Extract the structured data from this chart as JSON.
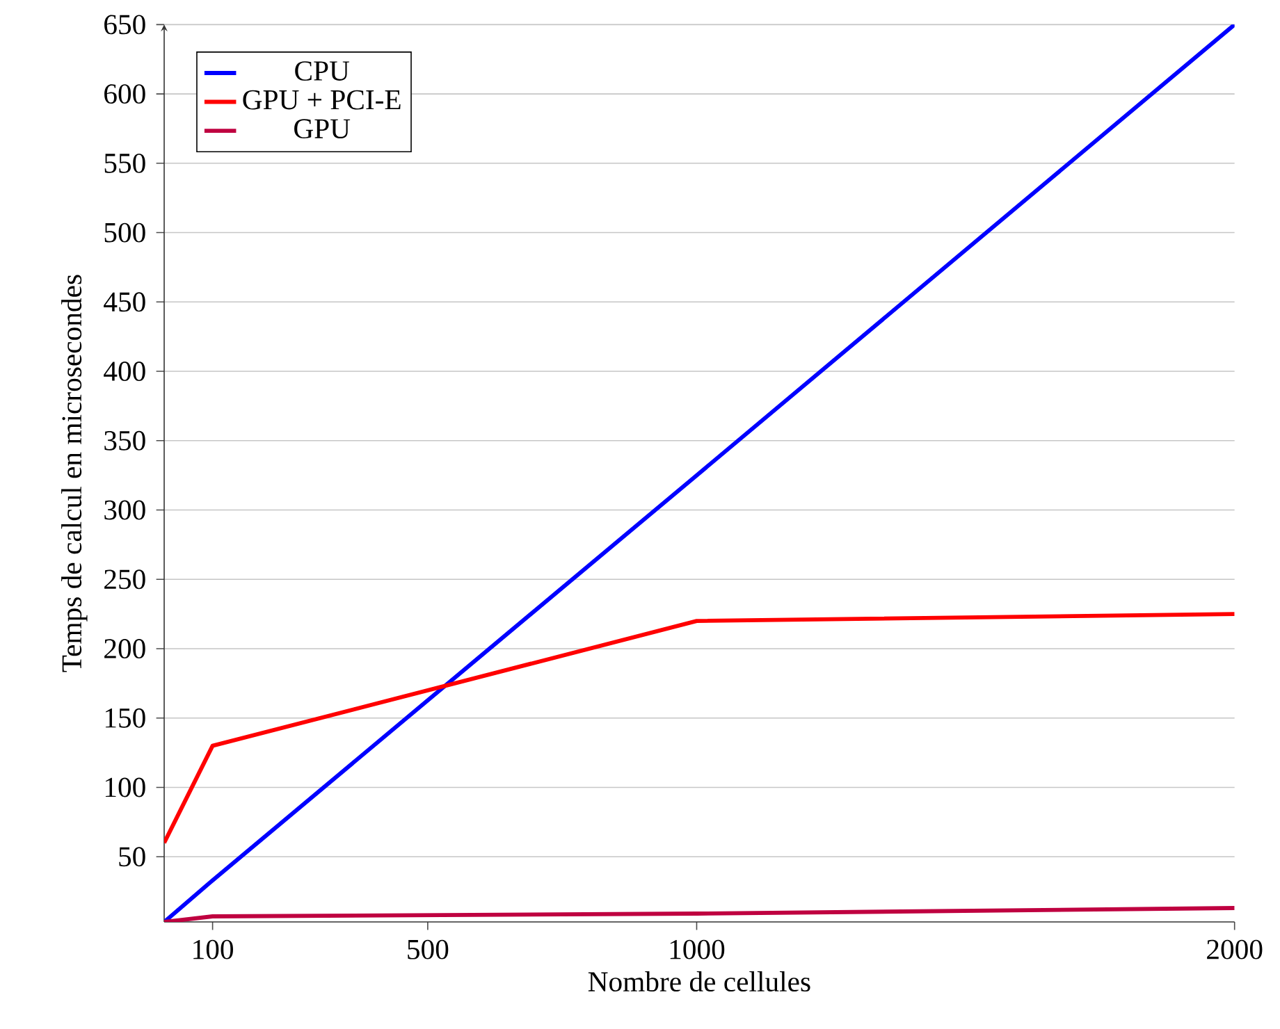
{
  "chart_data": {
    "type": "line",
    "xlabel": "Nombre de cellules",
    "ylabel": "Temps de calcul en microsecondes",
    "x": [
      10,
      100,
      1000,
      2000
    ],
    "series": [
      {
        "name": "CPU",
        "color": "#0000ff",
        "values": [
          3,
          33,
          325,
          650
        ]
      },
      {
        "name": "GPU + PCI-E",
        "color": "#ff0000",
        "values": [
          60,
          130,
          220,
          225
        ]
      },
      {
        "name": "GPU",
        "color": "#bf0040",
        "values": [
          3,
          7,
          9,
          13
        ]
      }
    ],
    "xlim": [
      10,
      2000
    ],
    "ylim": [
      3,
      650
    ],
    "xticks": [
      100,
      500,
      1000,
      2000
    ],
    "yticks": [
      50,
      100,
      150,
      200,
      250,
      300,
      350,
      400,
      450,
      500,
      550,
      600,
      650
    ],
    "grid": "y",
    "legend": "top left",
    "line_style": "solid",
    "marker": "none"
  }
}
